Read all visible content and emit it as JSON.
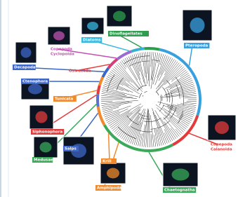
{
  "labels": [
    {
      "text": "Copepoda",
      "sub": "Cyclopoida"
    },
    {
      "text": "Diatoms"
    },
    {
      "text": "Dinoflagellates"
    },
    {
      "text": "Pteropoda"
    },
    {
      "text": "Decapoda"
    },
    {
      "text": "Ostracoda"
    },
    {
      "text": "Ctenophora"
    },
    {
      "text": "Tunicata"
    },
    {
      "text": "Siphonophora"
    },
    {
      "text": "Medusae"
    },
    {
      "text": "Salps"
    },
    {
      "text": "Krill"
    },
    {
      "text": "Amphipoda"
    },
    {
      "text": "Chaetognatha"
    },
    {
      "text": "Copepoda",
      "sub": "Calanoida"
    }
  ]
}
